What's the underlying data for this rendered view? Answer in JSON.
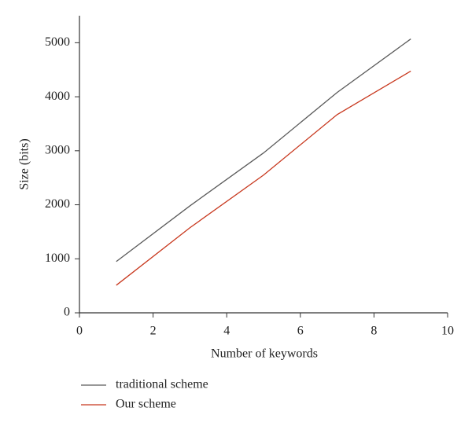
{
  "chart_data": {
    "type": "line",
    "x_label": "Number of keywords",
    "y_label": "Size (bits)",
    "x": [
      1,
      3,
      5,
      7,
      9
    ],
    "series": [
      {
        "name": "traditional scheme",
        "color": "#5a5a5a",
        "values": [
          950,
          1980,
          2960,
          4080,
          5070
        ]
      },
      {
        "name": "Our scheme",
        "color": "#c8381e",
        "values": [
          510,
          1575,
          2550,
          3670,
          4475
        ]
      }
    ],
    "xlim": [
      0,
      10
    ],
    "xticks": [
      0,
      2,
      4,
      6,
      8,
      10
    ],
    "ylim": [
      0,
      5500
    ],
    "yticks": [
      0,
      1000,
      2000,
      3000,
      4000,
      5000
    ],
    "grid": false,
    "legend": "bottom-left"
  }
}
